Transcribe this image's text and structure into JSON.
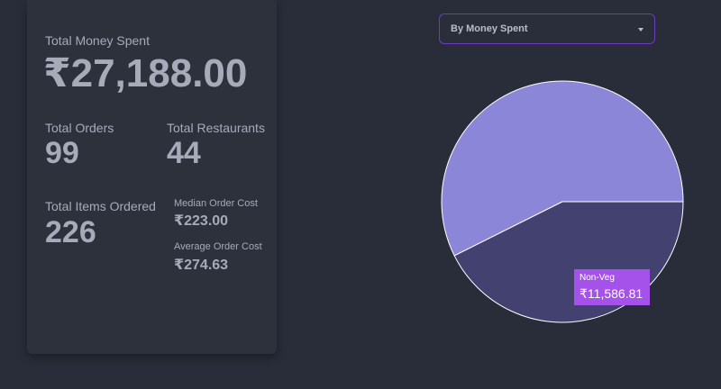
{
  "stats": {
    "total_money_label": "Total Money Spent",
    "total_money_value": "₹27,188.00",
    "total_orders_label": "Total Orders",
    "total_orders_value": "99",
    "total_restaurants_label": "Total Restaurants",
    "total_restaurants_value": "44",
    "total_items_label": "Total Items Ordered",
    "total_items_value": "226",
    "median_label": "Median Order Cost",
    "median_value": "₹223.00",
    "average_label": "Average Order Cost",
    "average_value": "₹274.63"
  },
  "dropdown": {
    "selected": "By Money Spent"
  },
  "chart_data": {
    "type": "pie",
    "slices": [
      {
        "value": 15601.19,
        "color": "#8b86d8"
      },
      {
        "label": "Non-Veg",
        "value": 11586.81,
        "color": "#434170"
      }
    ],
    "total": 27188.0
  },
  "tooltip": {
    "name": "Non-Veg",
    "value": "₹11,586.81"
  },
  "colors": {
    "background": "#292d39",
    "card": "#2c313c",
    "accent": "#6b3cc2",
    "tooltip": "#a552eb"
  }
}
